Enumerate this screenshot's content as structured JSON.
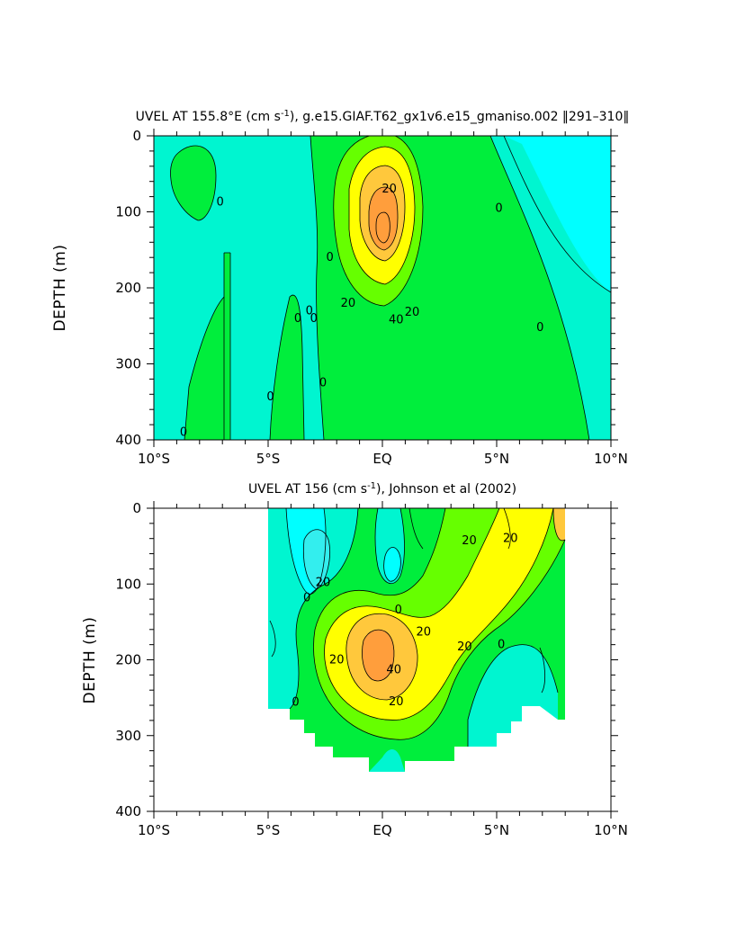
{
  "colors": {
    "cyan": "#00ffff",
    "aqua": "#00f5d0",
    "green": "#00ee3c",
    "light_green": "#66ff00",
    "yellow": "#ffff00",
    "gold": "#ffc83c",
    "orange": "#ff9e3c"
  },
  "chart_data": [
    {
      "type": "contour",
      "title_main": "UVEL AT 155.8°E (cm s",
      "title_sup": "-1",
      "title_rest": "), g.e15.GIAF.T62_gx1v6.e15_gmaniso.002 ‖291–310‖",
      "ylabel": "DEPTH (m)",
      "xlabel": "",
      "x_range": [
        -10,
        10
      ],
      "y_range": [
        400,
        0
      ],
      "x_ticks": [
        {
          "v": -10,
          "label": "10°S"
        },
        {
          "v": -5,
          "label": "5°S"
        },
        {
          "v": 0,
          "label": "EQ"
        },
        {
          "v": 5,
          "label": "5°N"
        },
        {
          "v": 10,
          "label": "10°N"
        }
      ],
      "y_ticks": [
        {
          "v": 0,
          "label": "0"
        },
        {
          "v": 100,
          "label": "100"
        },
        {
          "v": 200,
          "label": "200"
        },
        {
          "v": 300,
          "label": "300"
        },
        {
          "v": 400,
          "label": "400"
        }
      ],
      "contour_interval": 10,
      "contour_labels": [
        {
          "x": 0.3,
          "y": 70,
          "text": "20"
        },
        {
          "x": -7.1,
          "y": 87,
          "text": "0"
        },
        {
          "x": -3.2,
          "y": 230,
          "text": "0"
        },
        {
          "x": -3.0,
          "y": 240,
          "text": "0"
        },
        {
          "x": -3.7,
          "y": 240,
          "text": "0"
        },
        {
          "x": -2.3,
          "y": 160,
          "text": "0"
        },
        {
          "x": -1.5,
          "y": 220,
          "text": "20"
        },
        {
          "x": 0.6,
          "y": 242,
          "text": "40"
        },
        {
          "x": 1.3,
          "y": 232,
          "text": "20"
        },
        {
          "x": -4.9,
          "y": 343,
          "text": "0"
        },
        {
          "x": -2.6,
          "y": 325,
          "text": "0"
        },
        {
          "x": -8.7,
          "y": 390,
          "text": "0"
        },
        {
          "x": 5.1,
          "y": 95,
          "text": "0"
        },
        {
          "x": 6.9,
          "y": 252,
          "text": "0"
        }
      ]
    },
    {
      "type": "contour",
      "title_main": "UVEL AT 156 (cm s",
      "title_sup": "-1",
      "title_rest": "), Johnson et al (2002)",
      "ylabel": "DEPTH (m)",
      "xlabel": "",
      "x_range": [
        -10,
        10
      ],
      "y_range": [
        400,
        0
      ],
      "x_ticks": [
        {
          "v": -10,
          "label": "10°S"
        },
        {
          "v": -5,
          "label": "5°S"
        },
        {
          "v": 0,
          "label": "EQ"
        },
        {
          "v": 5,
          "label": "5°N"
        },
        {
          "v": 10,
          "label": "10°N"
        }
      ],
      "y_ticks": [
        {
          "v": 0,
          "label": "0"
        },
        {
          "v": 100,
          "label": "100"
        },
        {
          "v": 200,
          "label": "200"
        },
        {
          "v": 300,
          "label": "300"
        },
        {
          "v": 400,
          "label": "400"
        }
      ],
      "data_extent_x": [
        -5,
        8
      ],
      "contour_interval": 10,
      "contour_labels": [
        {
          "x": 3.8,
          "y": 43,
          "text": "20"
        },
        {
          "x": 5.6,
          "y": 40,
          "text": "20"
        },
        {
          "x": -2.6,
          "y": 98,
          "text": "20"
        },
        {
          "x": -3.3,
          "y": 118,
          "text": "0"
        },
        {
          "x": 0.7,
          "y": 134,
          "text": "0"
        },
        {
          "x": 1.8,
          "y": 163,
          "text": "20"
        },
        {
          "x": 3.6,
          "y": 183,
          "text": "20"
        },
        {
          "x": -2.0,
          "y": 200,
          "text": "20"
        },
        {
          "x": 5.2,
          "y": 180,
          "text": "0"
        },
        {
          "x": 0.5,
          "y": 213,
          "text": "40"
        },
        {
          "x": 0.6,
          "y": 255,
          "text": "20"
        },
        {
          "x": -3.8,
          "y": 256,
          "text": "0"
        }
      ]
    }
  ]
}
